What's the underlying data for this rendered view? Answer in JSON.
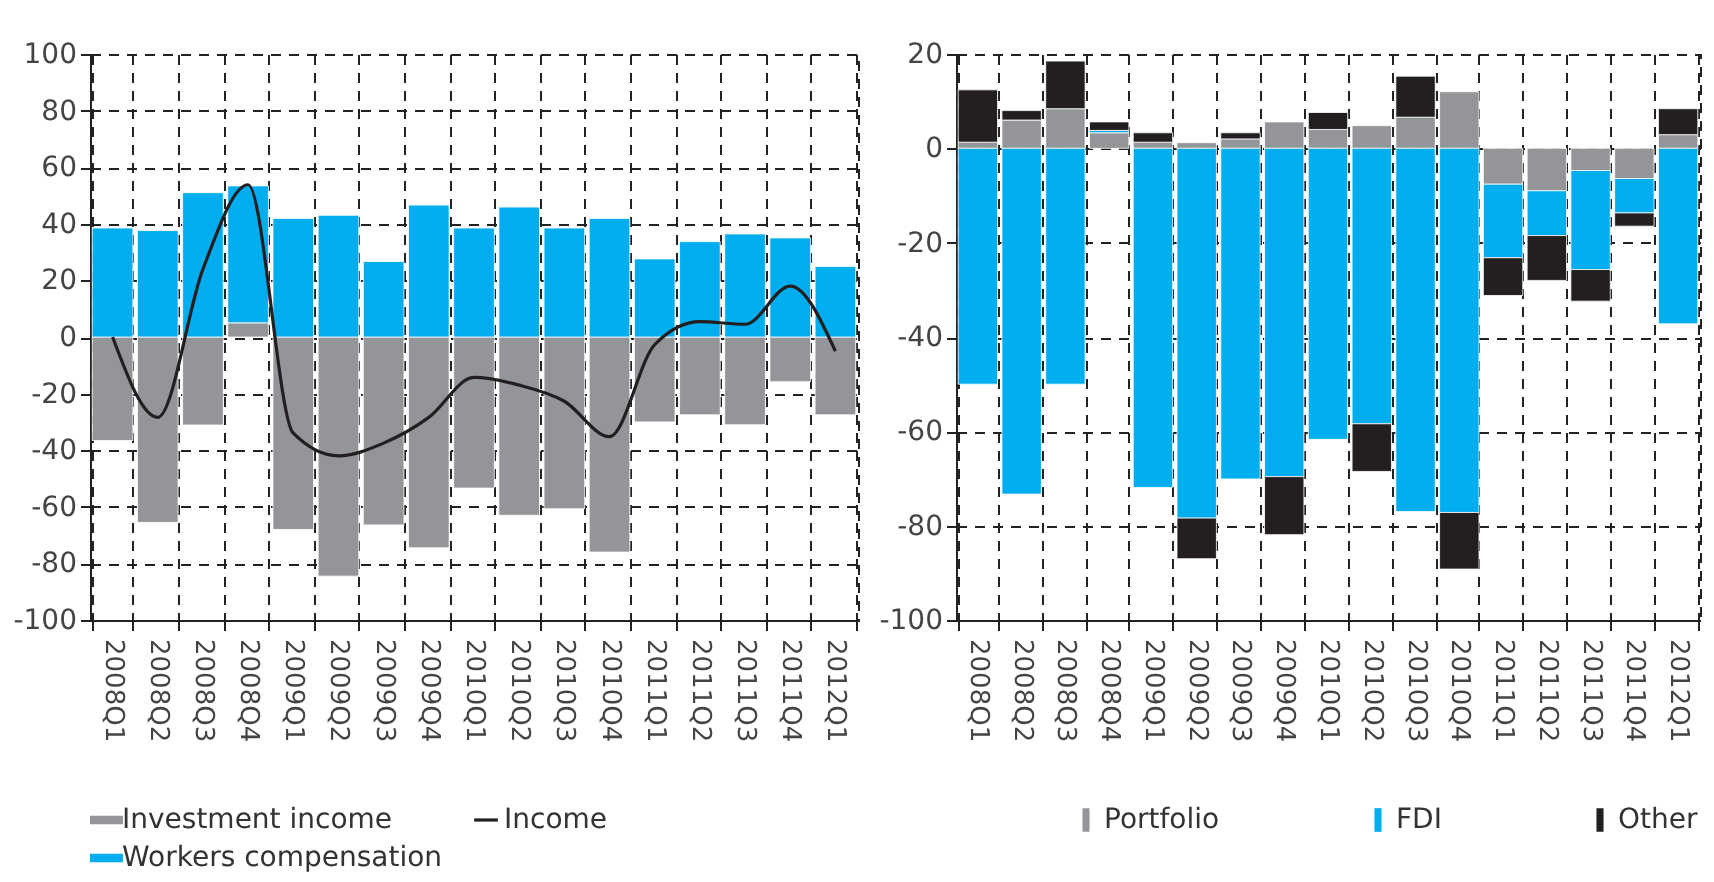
{
  "chart_data": [
    {
      "type": "bar",
      "stacked": true,
      "categories": [
        "2008Q1",
        "2008Q2",
        "2008Q3",
        "2008Q4",
        "2009Q1",
        "2009Q2",
        "2009Q3",
        "2009Q4",
        "2010Q1",
        "2010Q2",
        "2010Q3",
        "2010Q4",
        "2011Q1",
        "2011Q2",
        "2011Q3",
        "2011Q4",
        "2012Q1"
      ],
      "series": [
        {
          "name": "Investment income",
          "color": "#939598",
          "values": [
            -36.6,
            -65.5,
            -31.1,
            5,
            -68,
            -84.5,
            -66.4,
            -74.5,
            -53.4,
            -63,
            -60.7,
            -76,
            -30,
            -27.5,
            -31,
            -15.8,
            -27.5
          ]
        },
        {
          "name": "Income",
          "type": "line",
          "color": "#231f20",
          "values": [
            0,
            -28.4,
            24,
            53.8,
            -34,
            -42,
            -37.5,
            -28.4,
            -14.3,
            -17,
            -22.7,
            -35.2,
            -2.7,
            5.4,
            4.5,
            18,
            -5
          ]
        },
        {
          "name": "Workers compensation",
          "color": "#00aeef",
          "values": [
            38.5,
            37.6,
            51,
            48.4,
            41.9,
            43,
            26.7,
            46.6,
            38.5,
            45.9,
            38.5,
            41.9,
            27.6,
            33.7,
            36.4,
            35,
            24.9
          ]
        }
      ],
      "ylim": [
        -100,
        100
      ],
      "yticks": [
        -100,
        -80,
        -60,
        -40,
        -20,
        0,
        20,
        40,
        60,
        80,
        100
      ],
      "grid": true,
      "legend": "bottom"
    },
    {
      "type": "bar",
      "stacked": true,
      "categories": [
        "2008Q1",
        "2008Q2",
        "2008Q3",
        "2008Q4",
        "2009Q1",
        "2009Q2",
        "2009Q3",
        "2009Q4",
        "2010Q1",
        "2010Q2",
        "2010Q3",
        "2010Q4",
        "2011Q1",
        "2011Q2",
        "2011Q3",
        "2011Q4",
        "2012Q1"
      ],
      "series": [
        {
          "name": "Portfolio",
          "color": "#939598",
          "values": [
            1.3,
            6,
            8.4,
            3.3,
            1.3,
            1.2,
            2,
            5.6,
            4,
            4.8,
            6.6,
            12,
            -7.6,
            -9,
            -4.7,
            -6.4,
            2.9
          ]
        },
        {
          "name": "FDI",
          "color": "#00aeef",
          "values": [
            -50,
            -73.3,
            -50,
            0.5,
            -71.9,
            -78.4,
            -70.1,
            -69.6,
            -61.7,
            -58.4,
            -77,
            -77.2,
            -15.6,
            -9.5,
            -21,
            -7.3,
            -37.2
          ]
        },
        {
          "name": "Other",
          "color": "#231f20",
          "values": [
            11.1,
            2,
            10.1,
            1.8,
            2,
            -8.6,
            1.3,
            -12.3,
            3.6,
            -10.1,
            8.7,
            -12,
            -8,
            -9.5,
            -6.7,
            -2.8,
            5.5
          ]
        }
      ],
      "ylim": [
        -100,
        20
      ],
      "yticks": [
        -100,
        -80,
        -60,
        -40,
        -20,
        0,
        20
      ],
      "grid": true,
      "legend": "bottom"
    }
  ]
}
